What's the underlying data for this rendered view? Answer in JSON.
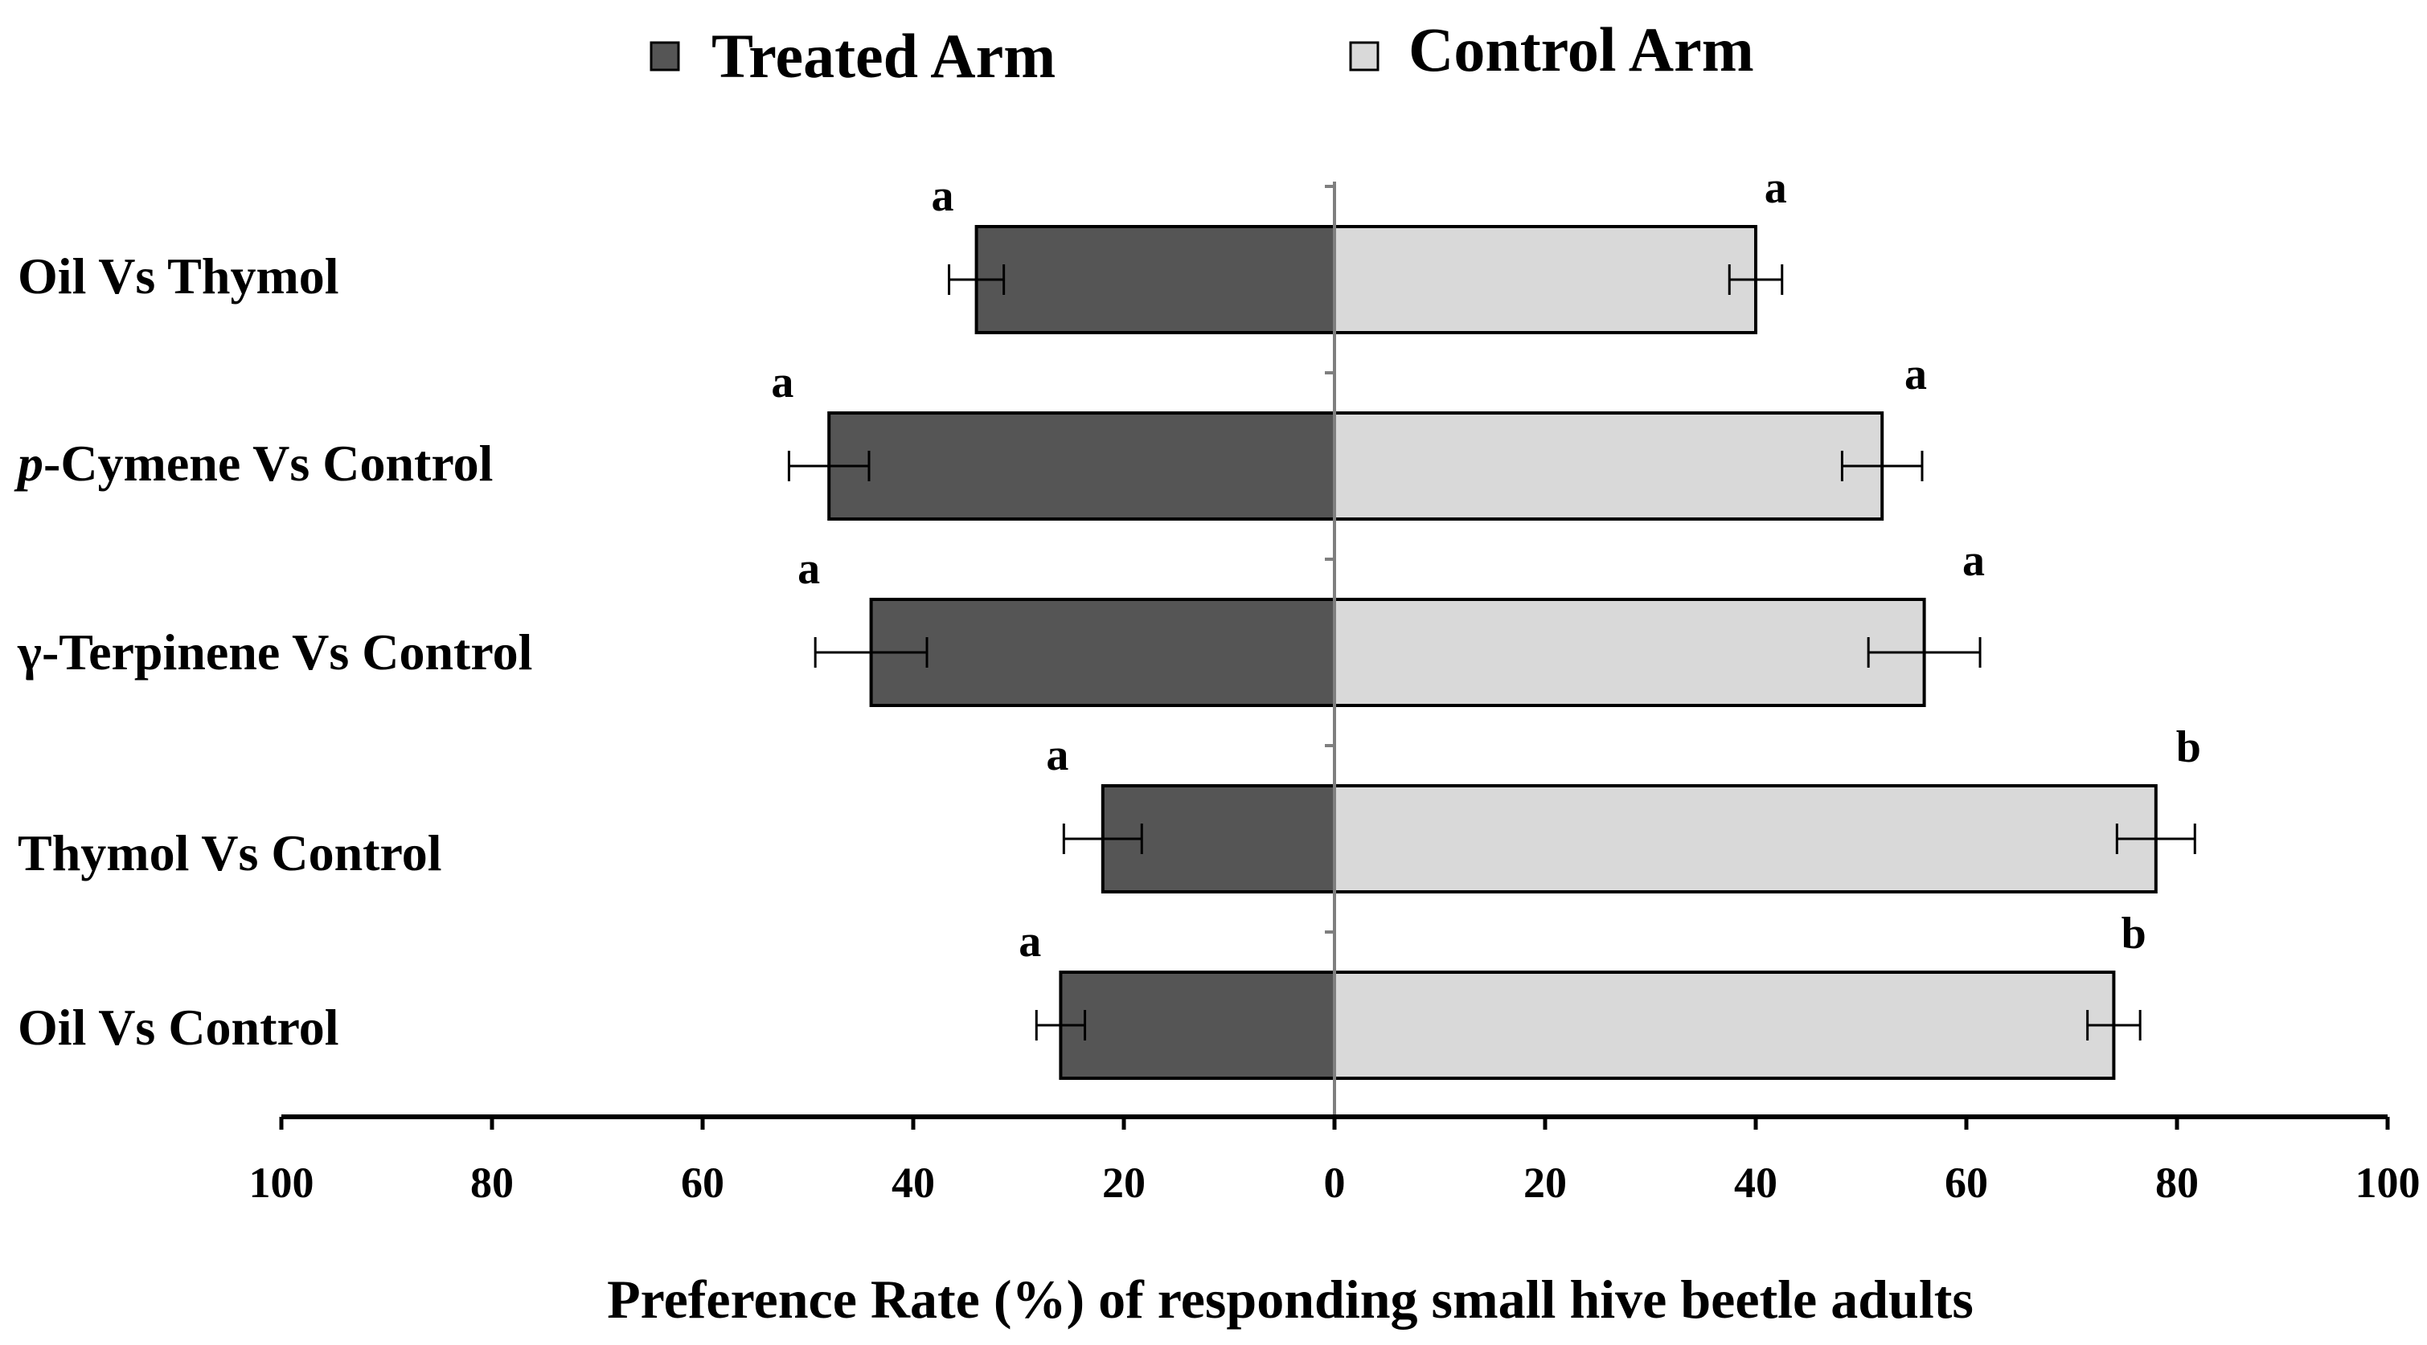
{
  "chart_data": {
    "type": "bar",
    "orientation": "horizontal-diverging",
    "title": "",
    "xlabel": "Preference Rate (%) of responding small hive beetle adults",
    "ylabel": "",
    "xlim": [
      -100,
      100
    ],
    "xticks": [
      -100,
      -80,
      -60,
      -40,
      -20,
      0,
      20,
      40,
      60,
      80,
      100
    ],
    "xtick_labels": [
      "100",
      "80",
      "60",
      "40",
      "20",
      "0",
      "20",
      "40",
      "60",
      "80",
      "100"
    ],
    "grid": false,
    "legend_position": "top-center",
    "categories": [
      {
        "text": "Oil Vs Thymol"
      },
      {
        "italic_prefix": "p",
        "text": "-Cymene Vs Control"
      },
      {
        "text": "γ-Terpinene Vs Control"
      },
      {
        "text": "Thymol Vs Control"
      },
      {
        "text": "Oil Vs Control"
      }
    ],
    "series": [
      {
        "name": "Treated Arm",
        "side": "left",
        "color": "#555555",
        "values": [
          34,
          48,
          44,
          22,
          26
        ],
        "errors": [
          2.6,
          3.8,
          5.3,
          3.7,
          2.3
        ],
        "letters": [
          "a",
          "a",
          "a",
          "a",
          "a"
        ]
      },
      {
        "name": "Control Arm",
        "side": "right",
        "color": "#d9d9d9",
        "values": [
          40,
          52,
          56,
          78,
          74
        ],
        "errors": [
          2.5,
          3.8,
          5.3,
          3.7,
          2.5
        ],
        "letters": [
          "a",
          "a",
          "a",
          "b",
          "b"
        ]
      }
    ]
  }
}
